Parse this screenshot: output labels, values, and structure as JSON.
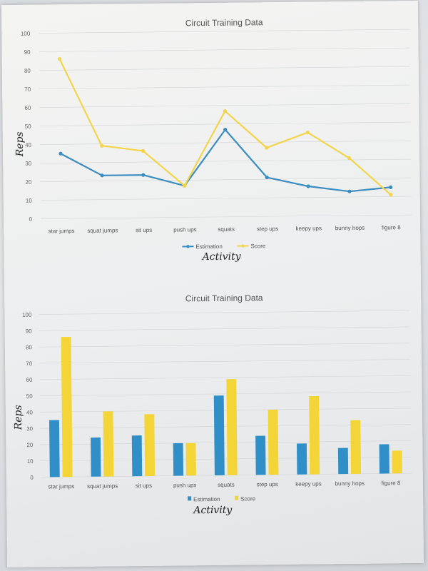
{
  "chart_data": [
    {
      "type": "line",
      "title": "Circuit Training Data",
      "xlabel": "Activity",
      "ylabel": "Reps",
      "ylim": [
        0,
        100
      ],
      "yticks": [
        0,
        10,
        20,
        30,
        40,
        50,
        60,
        70,
        80,
        90,
        100
      ],
      "categories": [
        "star jumps",
        "squat jumps",
        "sit ups",
        "push ups",
        "squats",
        "step ups",
        "keepy ups",
        "bunny hops",
        "figure 8"
      ],
      "series": [
        {
          "name": "Estimation",
          "color": "#3c8dc0",
          "values": [
            35,
            23,
            23,
            17,
            47,
            21,
            16,
            13,
            15
          ]
        },
        {
          "name": "Score",
          "color": "#f2d54a",
          "values": [
            86,
            39,
            36,
            17,
            57,
            37,
            45,
            31,
            11
          ]
        }
      ],
      "grid": true,
      "legend": "bottom"
    },
    {
      "type": "bar",
      "title": "Circuit Training Data",
      "xlabel": "Activity",
      "ylabel": "Reps",
      "ylim": [
        0,
        100
      ],
      "yticks": [
        0,
        10,
        20,
        30,
        40,
        50,
        60,
        70,
        80,
        90,
        100
      ],
      "categories": [
        "star jumps",
        "squat jumps",
        "sit ups",
        "push ups",
        "squats",
        "step ups",
        "keepy ups",
        "bunny hops",
        "figure 8"
      ],
      "series": [
        {
          "name": "Estimation",
          "color": "#2f8fc6",
          "values": [
            35,
            24,
            25,
            20,
            49,
            24,
            19,
            16,
            18
          ]
        },
        {
          "name": "Score",
          "color": "#f3d538",
          "values": [
            86,
            40,
            38,
            20,
            59,
            40,
            48,
            33,
            14
          ]
        }
      ],
      "grid": true,
      "legend": "bottom"
    }
  ]
}
